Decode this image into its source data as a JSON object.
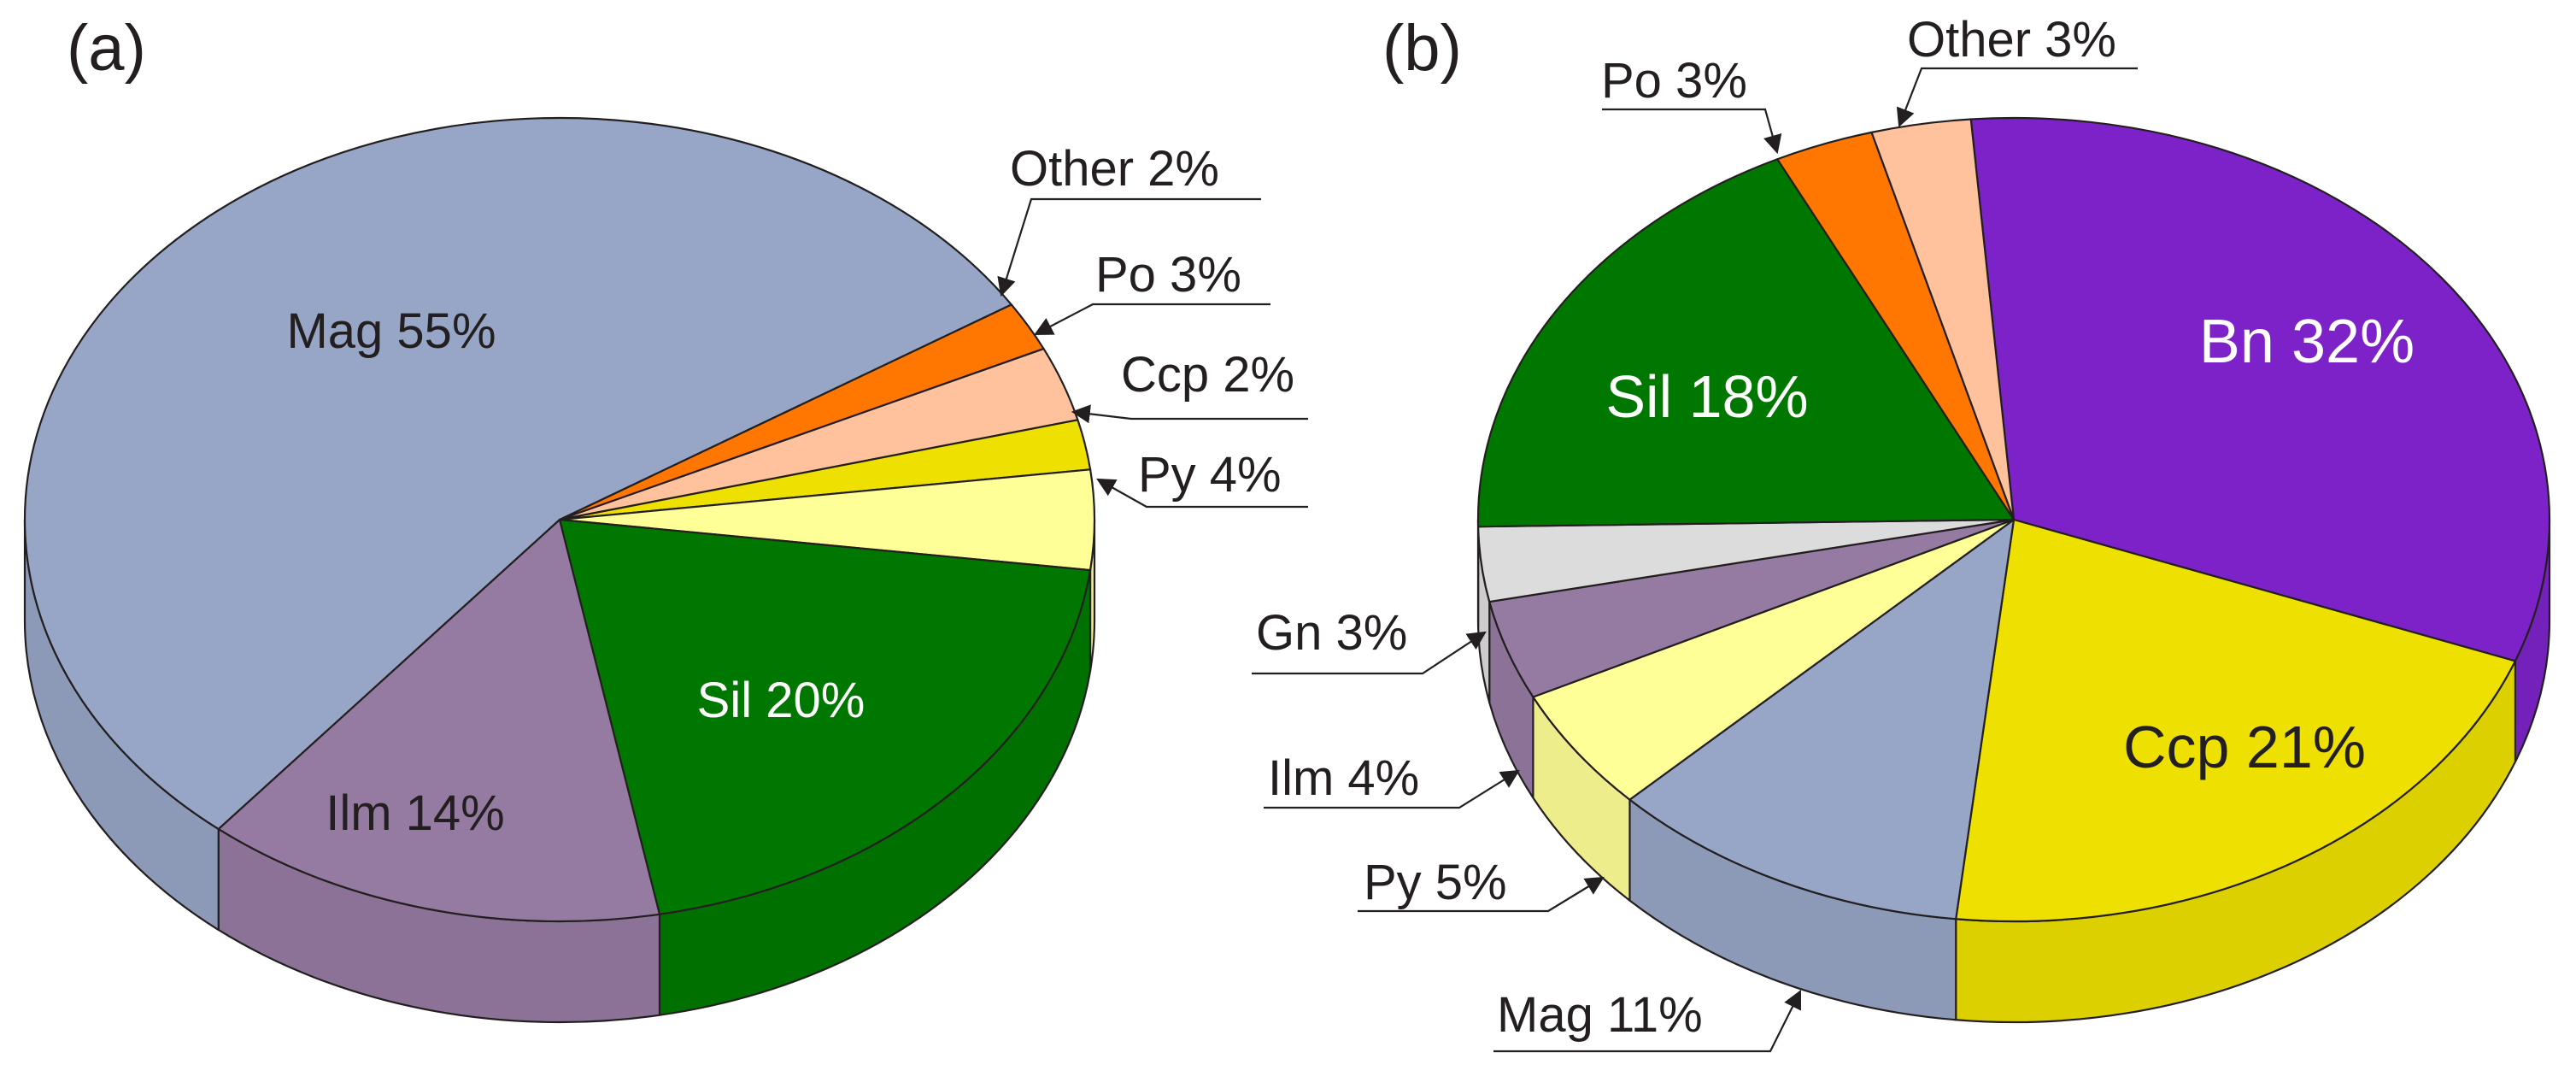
{
  "chart_data": [
    {
      "type": "pie",
      "panel_label": "(a)",
      "slices": [
        {
          "name": "Mag",
          "value": 55,
          "label": "Mag 55%",
          "color": "#97a6c6",
          "text_color": "#231f20"
        },
        {
          "name": "Other",
          "value": 2,
          "label": "Other 2%",
          "color": "#ff7700",
          "text_color": "#231f20"
        },
        {
          "name": "Po",
          "value": 3,
          "label": "Po 3%",
          "color": "#ffc29c",
          "text_color": "#231f20"
        },
        {
          "name": "Ccp",
          "value": 2,
          "label": "Ccp 2%",
          "color": "#eee000",
          "text_color": "#231f20"
        },
        {
          "name": "Py",
          "value": 4,
          "label": "Py 4%",
          "color": "#ffff97",
          "text_color": "#231f20"
        },
        {
          "name": "Sil",
          "value": 20,
          "label": "Sil 20%",
          "color": "#007800",
          "text_color": "#ffffff"
        },
        {
          "name": "Ilm",
          "value": 14,
          "label": "Ilm 14%",
          "color": "#957ba1",
          "text_color": "#231f20"
        }
      ]
    },
    {
      "type": "pie",
      "panel_label": "(b)",
      "slices": [
        {
          "name": "Bn",
          "value": 32,
          "label": "Bn 32%",
          "color": "#7d22c9",
          "text_color": "#ffffff"
        },
        {
          "name": "Ccp",
          "value": 21,
          "label": "Ccp 21%",
          "color": "#eee000",
          "text_color": "#231f20"
        },
        {
          "name": "Mag",
          "value": 11,
          "label": "Mag 11%",
          "color": "#97a6c6",
          "text_color": "#231f20"
        },
        {
          "name": "Py",
          "value": 5,
          "label": "Py 5%",
          "color": "#ffff97",
          "text_color": "#231f20"
        },
        {
          "name": "Ilm",
          "value": 4,
          "label": "Ilm 4%",
          "color": "#957ba1",
          "text_color": "#231f20"
        },
        {
          "name": "Gn",
          "value": 3,
          "label": "Gn 3%",
          "color": "#dcdcdc",
          "text_color": "#231f20"
        },
        {
          "name": "Sil",
          "value": 18,
          "label": "Sil 18%",
          "color": "#007800",
          "text_color": "#ffffff"
        },
        {
          "name": "Po",
          "value": 3,
          "label": "Po 3%",
          "color": "#ff7700",
          "text_color": "#231f20"
        },
        {
          "name": "Other",
          "value": 3,
          "label": "Other 3%",
          "color": "#ffc29c",
          "text_color": "#231f20"
        }
      ]
    }
  ],
  "colors": {
    "outline": "#231f20",
    "background": "#ffffff"
  }
}
